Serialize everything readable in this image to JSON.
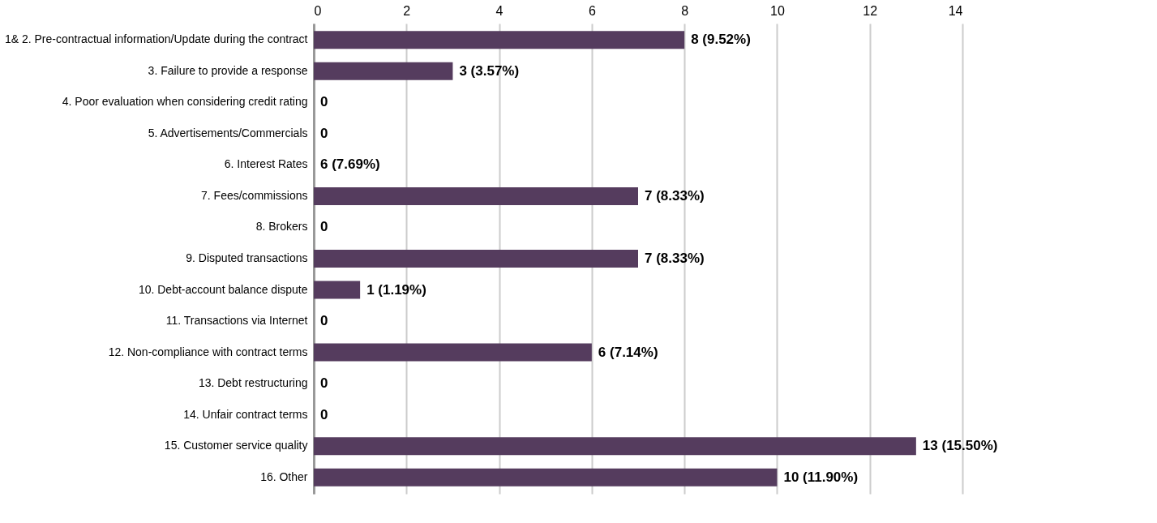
{
  "chart_data": {
    "type": "bar",
    "orientation": "horizontal",
    "categories": [
      "1& 2. Pre-contractual information/Update during the contract",
      "3. Failure to provide a response",
      "4. Poor evaluation when considering credit rating",
      "5. Advertisements/Commercials",
      "6. Interest Rates",
      "7. Fees/commissions",
      "8. Brokers",
      "9. Disputed transactions",
      "10. Debt-account balance dispute",
      "11. Transactions via Internet",
      "12. Non-compliance with contract terms",
      "13. Debt restructuring",
      "14. Unfair contract terms",
      "15. Customer service quality",
      "16. Other"
    ],
    "values": [
      8,
      3,
      0,
      0,
      null,
      7,
      0,
      7,
      1,
      0,
      6,
      0,
      0,
      13,
      10
    ],
    "value_labels": [
      "8 (9.52%)",
      "3 (3.57%)",
      "0",
      "0",
      "6 (7.69%)",
      "7 (8.33%)",
      "0",
      "7 (8.33%)",
      "1 (1.19%)",
      "0",
      "6 (7.14%)",
      "0",
      "0",
      "13 (15.50%)",
      "10 (11.90%)"
    ],
    "color": "#553c5e",
    "xlim": [
      0,
      14
    ],
    "xticks": [
      0,
      2,
      4,
      6,
      8,
      10,
      12,
      14
    ],
    "grid": "x"
  }
}
